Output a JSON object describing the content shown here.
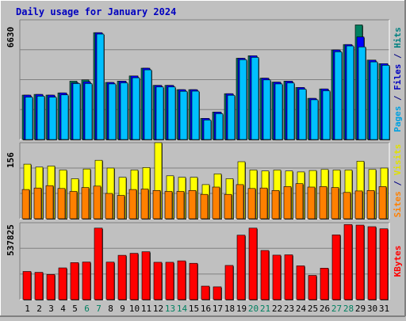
{
  "chart_data": {
    "type": "bar",
    "title": "Daily usage for January 2024",
    "days": [
      "1",
      "2",
      "3",
      "4",
      "5",
      "6",
      "7",
      "8",
      "9",
      "10",
      "11",
      "12",
      "13",
      "14",
      "15",
      "16",
      "17",
      "18",
      "19",
      "20",
      "21",
      "22",
      "23",
      "24",
      "25",
      "26",
      "27",
      "28",
      "29",
      "30",
      "31"
    ],
    "weekend_days": [
      "6",
      "7",
      "13",
      "14",
      "20",
      "21",
      "27",
      "28"
    ],
    "panels": [
      {
        "id": "hits",
        "max_label": "6630",
        "ymax": 6630,
        "axis_labels": [
          {
            "text": "Pages",
            "color": "#00a0e0"
          },
          {
            "text": " / ",
            "color": "#000080"
          },
          {
            "text": "Files",
            "color": "#0000c0"
          },
          {
            "text": " / ",
            "color": "#000080"
          },
          {
            "text": "Hits",
            "color": "#008080"
          }
        ],
        "series": [
          {
            "name": "Hits",
            "color": "#008060",
            "values": [
              2460,
              2500,
              2460,
              2580,
              3230,
              3300,
              5920,
              3160,
              3230,
              3520,
              3950,
              3000,
              3000,
              2760,
              2760,
              1170,
              1520,
              2540,
              4500,
              4640,
              3400,
              3180,
              3230,
              2880,
              2280,
              2800,
              4960,
              5260,
              6350,
              4400,
              4200
            ]
          },
          {
            "name": "Files",
            "color": "#0000ff",
            "values": [
              2460,
              2500,
              2460,
              2580,
              3140,
              3200,
              5920,
              3160,
              3230,
              3520,
              3950,
              3000,
              3000,
              2760,
              2760,
              1170,
              1520,
              2540,
              4500,
              4640,
              3400,
              3180,
              3230,
              2880,
              2280,
              2800,
              4960,
              5260,
              5680,
              4400,
              4200
            ]
          },
          {
            "name": "Pages",
            "color": "#00c0ff",
            "values": [
              2350,
              2400,
              2350,
              2470,
              3100,
              3100,
              5840,
              3080,
              3140,
              3420,
              3860,
              2910,
              2910,
              2670,
              2680,
              1080,
              1430,
              2450,
              4420,
              4550,
              3300,
              3080,
              3130,
              2790,
              2200,
              2700,
              4860,
              5180,
              5130,
              4300,
              4110
            ]
          }
        ]
      },
      {
        "id": "visits",
        "max_label": "156",
        "ymax": 156,
        "axis_labels": [
          {
            "text": "Sites",
            "color": "#ff8000"
          },
          {
            "text": " / ",
            "color": "#000080"
          },
          {
            "text": "Visits",
            "color": "#e0e000"
          }
        ],
        "series": [
          {
            "name": "Visits",
            "color": "#ffff00",
            "values": [
              112,
              106,
              108,
              100,
              82,
              102,
              120,
              104,
              85,
              100,
              105,
              156,
              88,
              85,
              85,
              70,
              92,
              82,
              117,
              100,
              98,
              100,
              98,
              96,
              99,
              101,
              100,
              100,
              118,
              101,
              104
            ]
          },
          {
            "name": "Sites",
            "color": "#ff8000",
            "values": [
              60,
              63,
              68,
              62,
              56,
              64,
              67,
              52,
              48,
              60,
              61,
              58,
              56,
              56,
              58,
              50,
              65,
              50,
              70,
              62,
              63,
              58,
              66,
              72,
              65,
              66,
              64,
              54,
              57,
              58,
              66
            ]
          }
        ]
      },
      {
        "id": "kbytes",
        "max_label": "537825",
        "ymax": 537825,
        "axis_labels": [
          {
            "text": "KBytes",
            "color": "#ff0000"
          }
        ],
        "series": [
          {
            "name": "KBytes",
            "color": "#ff0000",
            "values": [
              197000,
              191000,
              176000,
              222000,
              259000,
              263000,
              500000,
              262000,
              310000,
              324000,
              335000,
              261000,
              261000,
              271000,
              254000,
              94000,
              89000,
              239000,
              451000,
              500000,
              344000,
              311000,
              313000,
              236000,
              169000,
              220000,
              453000,
              525000,
              521000,
              510000,
              495000
            ]
          }
        ]
      }
    ]
  }
}
